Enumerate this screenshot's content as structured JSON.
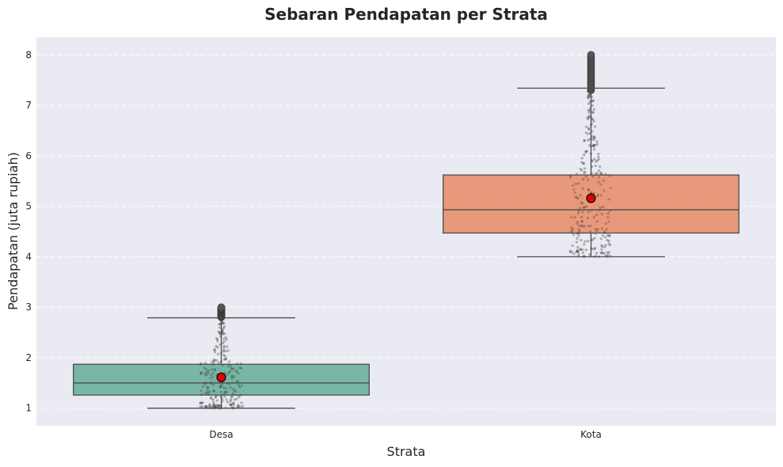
{
  "chart_data": {
    "type": "box",
    "title": "Sebaran Pendapatan per Strata",
    "xlabel": "Strata",
    "ylabel": "Pendapatan (juta rupiah)",
    "categories": [
      "Desa",
      "Kota"
    ],
    "ylim": [
      0.65,
      8.35
    ],
    "yticks": [
      1,
      2,
      3,
      4,
      5,
      6,
      7,
      8
    ],
    "grid": true,
    "legend": "none",
    "boxes": [
      {
        "category": "Desa",
        "whisker_low": 1.0,
        "q1": 1.26,
        "median": 1.5,
        "q3": 1.87,
        "whisker_high": 2.79,
        "mean": 1.61,
        "outliers_min": 2.8,
        "outliers_max": 3.0,
        "color": "#73b3a0"
      },
      {
        "category": "Kota",
        "whisker_low": 4.0,
        "q1": 4.47,
        "median": 4.93,
        "q3": 5.62,
        "whisker_high": 7.34,
        "mean": 5.16,
        "outliers_min": 7.3,
        "outliers_max": 8.0,
        "color": "#e89574"
      }
    ],
    "colors": {
      "background": "#eaeaf2",
      "mean_marker": "#e50000",
      "box_edge": "#4d4d4d",
      "points": "#333333"
    }
  }
}
